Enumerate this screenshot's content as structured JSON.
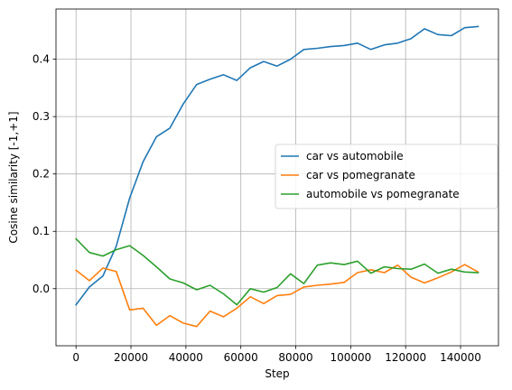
{
  "chart_data": {
    "type": "line",
    "title": "",
    "xlabel": "Step",
    "ylabel": "Cosine similarity [-1,+1]",
    "xlim": [
      -7300,
      153800
    ],
    "ylim": [
      -0.0995,
      0.4875
    ],
    "xticks": [
      0,
      20000,
      40000,
      60000,
      80000,
      100000,
      120000,
      140000
    ],
    "xtick_labels": [
      "0",
      "20000",
      "40000",
      "60000",
      "80000",
      "100000",
      "120000",
      "140000"
    ],
    "yticks": [
      0.0,
      0.1,
      0.2,
      0.3,
      0.4
    ],
    "ytick_labels": [
      "0.0",
      "0.1",
      "0.2",
      "0.3",
      "0.4"
    ],
    "grid": true,
    "legend_position": "center-right",
    "x": [
      0,
      4880,
      9760,
      14640,
      19520,
      24400,
      29280,
      34160,
      39040,
      43920,
      48800,
      53680,
      58560,
      63440,
      68320,
      73200,
      78080,
      82960,
      87840,
      92720,
      97600,
      102480,
      107360,
      112240,
      117120,
      122000,
      126880,
      131760,
      136640,
      141520,
      146400
    ],
    "series": [
      {
        "name": "car vs automobile",
        "color": "#1f77b4",
        "values": [
          -0.028,
          0.003,
          0.022,
          0.074,
          0.158,
          0.221,
          0.265,
          0.28,
          0.322,
          0.356,
          0.365,
          0.373,
          0.363,
          0.385,
          0.396,
          0.388,
          0.4,
          0.417,
          0.419,
          0.422,
          0.424,
          0.428,
          0.417,
          0.425,
          0.428,
          0.436,
          0.453,
          0.443,
          0.441,
          0.455,
          0.457
        ]
      },
      {
        "name": "car vs pomegranate",
        "color": "#ff7f0e",
        "values": [
          0.032,
          0.014,
          0.036,
          0.03,
          -0.037,
          -0.034,
          -0.064,
          -0.047,
          -0.06,
          -0.066,
          -0.039,
          -0.049,
          -0.034,
          -0.014,
          -0.026,
          -0.012,
          -0.01,
          0.003,
          0.006,
          0.008,
          0.011,
          0.028,
          0.033,
          0.028,
          0.041,
          0.02,
          0.01,
          0.019,
          0.029,
          0.042,
          0.029
        ]
      },
      {
        "name": "automobile vs pomegranate",
        "color": "#2ca02c",
        "values": [
          0.087,
          0.063,
          0.057,
          0.068,
          0.075,
          0.058,
          0.038,
          0.017,
          0.01,
          -0.002,
          0.006,
          -0.009,
          -0.028,
          0.0,
          -0.006,
          0.002,
          0.026,
          0.009,
          0.041,
          0.045,
          0.042,
          0.048,
          0.027,
          0.038,
          0.035,
          0.034,
          0.043,
          0.027,
          0.034,
          0.029,
          0.028
        ]
      }
    ]
  }
}
